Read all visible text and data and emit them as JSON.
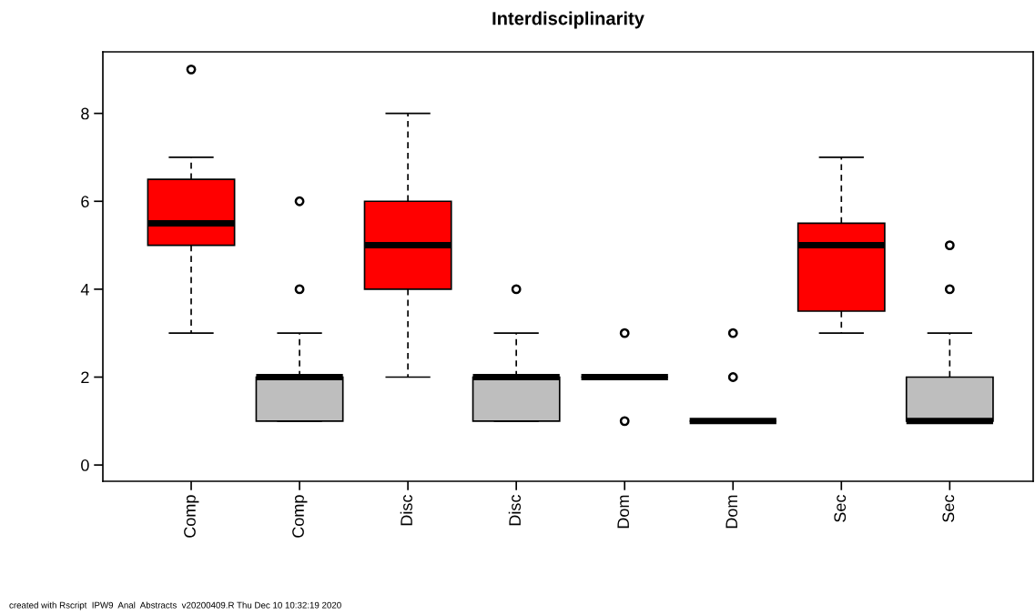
{
  "chart_data": {
    "type": "box",
    "title": "Interdisciplinarity",
    "categories": [
      "Comp",
      "Comp",
      "Disc",
      "Disc",
      "Dom",
      "Dom",
      "Sec",
      "Sec"
    ],
    "colors": [
      "#ff0000",
      "#bebebe",
      "#ff0000",
      "#bebebe",
      null,
      null,
      "#ff0000",
      "#bebebe"
    ],
    "boxes": [
      {
        "low": 3,
        "q1": 5,
        "median": 5.5,
        "q3": 6.5,
        "high": 7,
        "outliers": [
          9
        ]
      },
      {
        "low": 1,
        "q1": 1,
        "median": 2,
        "q3": 2,
        "high": 3,
        "outliers": [
          4,
          6
        ]
      },
      {
        "low": 2,
        "q1": 4,
        "median": 5,
        "q3": 6,
        "high": 8
      },
      {
        "low": 1,
        "q1": 1,
        "median": 2,
        "q3": 2,
        "high": 3,
        "outliers": [
          4
        ]
      },
      {
        "low": 2,
        "q1": 2,
        "median": 2,
        "q3": 2,
        "high": 2,
        "outliers": [
          1,
          3
        ]
      },
      {
        "low": 1,
        "q1": 1,
        "median": 1,
        "q3": 1,
        "high": 1,
        "outliers": [
          2,
          3
        ]
      },
      {
        "low": 3,
        "q1": 3.5,
        "median": 5,
        "q3": 5.5,
        "high": 7
      },
      {
        "low": 1,
        "q1": 1,
        "median": 1,
        "q3": 2,
        "high": 3,
        "outliers": [
          4,
          5
        ]
      }
    ],
    "ylim": [
      -0.37,
      9.4
    ],
    "yticks": [
      0,
      2,
      4,
      6,
      8
    ],
    "grid": false,
    "annotations": [
      "created with Rscript  IPW9  Anal  Abstracts  v20200409.R Thu Dec 10 10:32:19 2020"
    ]
  }
}
